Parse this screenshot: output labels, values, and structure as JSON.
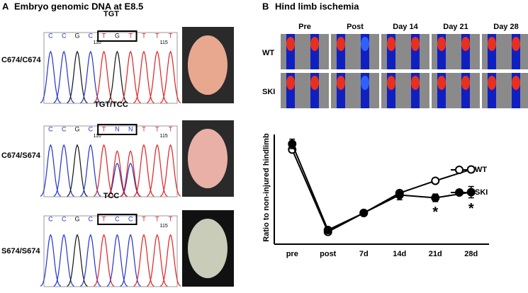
{
  "panel_a": {
    "label": "A",
    "title": "Embryo genomic DNA at E8.5",
    "rows": [
      {
        "genotype": "C674/C674",
        "codon": "TGT",
        "bases": [
          "C",
          "C",
          "G",
          "C",
          "T",
          "G",
          "T",
          "T",
          "T",
          "T"
        ],
        "positions": [
          "110",
          "115"
        ]
      },
      {
        "genotype": "C674/S674",
        "codon": "TGT/TCC",
        "bases": [
          "C",
          "C",
          "G",
          "C",
          "T",
          "N",
          "N",
          "T",
          "T",
          "T"
        ],
        "positions": [
          "110",
          "115"
        ]
      },
      {
        "genotype": "S674/S674",
        "codon": "TCC",
        "bases": [
          "C",
          "C",
          "G",
          "C",
          "T",
          "C",
          "C",
          "T",
          "T",
          "T"
        ],
        "positions": [
          "115"
        ]
      }
    ]
  },
  "panel_b": {
    "label": "B",
    "title": "Hind limb ischemia",
    "columns": [
      "Pre",
      "Post",
      "Day 14",
      "Day 21",
      "Day 28"
    ],
    "rows": [
      "WT",
      "SKI"
    ]
  },
  "chart_data": {
    "type": "line",
    "y_label": "Ratio to non-injured hindlimb",
    "categories": [
      "pre",
      "post",
      "7d",
      "14d",
      "21d",
      "28d"
    ],
    "series": [
      {
        "name": "WT",
        "color": "#000000",
        "marker": "open",
        "values": [
          1.0,
          0.13,
          0.33,
          0.54,
          0.67,
          0.79
        ],
        "errors": [
          0.02,
          0.02,
          0.02,
          0.03,
          0.02,
          0.03
        ]
      },
      {
        "name": "SKI",
        "color": "#000000",
        "marker": "filled",
        "values": [
          1.06,
          0.15,
          0.33,
          0.52,
          0.49,
          0.55
        ],
        "errors": [
          0.05,
          0.02,
          0.03,
          0.05,
          0.04,
          0.06
        ]
      }
    ],
    "ylim": [
      0,
      1.16
    ],
    "legend": "right",
    "annotations": [
      {
        "text": "*",
        "x": "21d"
      },
      {
        "text": "*",
        "x": "28d"
      }
    ]
  }
}
